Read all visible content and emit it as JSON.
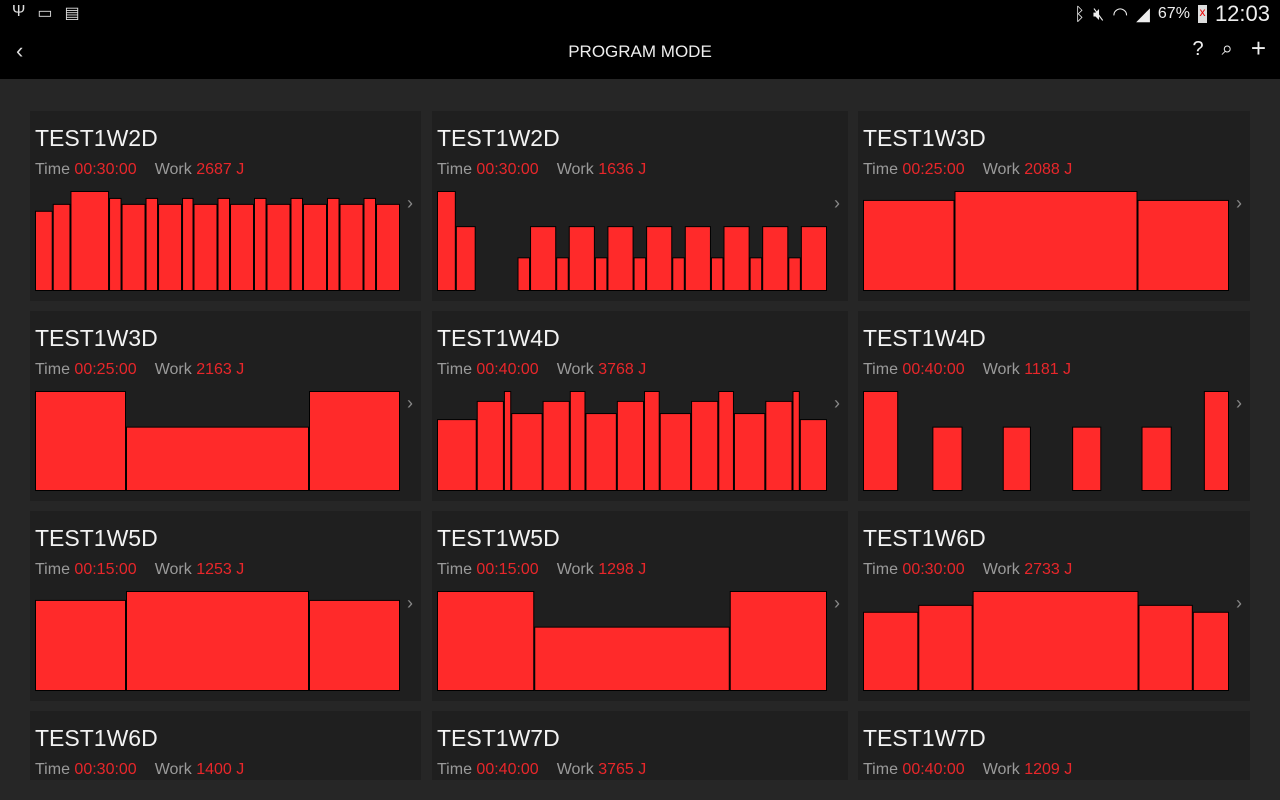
{
  "status_bar": {
    "left_icons": [
      "usb-icon",
      "screen-cast-icon",
      "sim-off-icon"
    ],
    "right_icons": [
      "bluetooth-icon",
      "mute-icon",
      "wifi-icon",
      "signal-icon"
    ],
    "battery": "67%",
    "time": "12:03"
  },
  "app_bar": {
    "title": "PROGRAM MODE",
    "back_icon": "chevron-left-icon",
    "actions": [
      {
        "icon": "help-icon",
        "label": "?"
      },
      {
        "icon": "search-icon"
      },
      {
        "icon": "plus-icon",
        "label": "+"
      }
    ]
  },
  "labels": {
    "time": "Time",
    "work": "Work"
  },
  "colors": {
    "bar": "#ff2a2a",
    "value": "#e8262a"
  },
  "programs": [
    {
      "name": "TEST1W2D",
      "time": "00:30:00",
      "work": "2687 J",
      "segments": [
        [
          17,
          0.8
        ],
        [
          17,
          0.87
        ],
        [
          37,
          1
        ],
        [
          12,
          0.93
        ],
        [
          23,
          0.87
        ],
        [
          12,
          0.93
        ],
        [
          23,
          0.87
        ],
        [
          11,
          0.93
        ],
        [
          23,
          0.87
        ],
        [
          12,
          0.93
        ],
        [
          23,
          0.87
        ],
        [
          12,
          0.93
        ],
        [
          23,
          0.87
        ],
        [
          12,
          0.93
        ],
        [
          23,
          0.87
        ],
        [
          12,
          0.93
        ],
        [
          23,
          0.87
        ],
        [
          12,
          0.93
        ],
        [
          23,
          0.87
        ]
      ]
    },
    {
      "name": "TEST1W2D",
      "time": "00:30:00",
      "work": "1636 J",
      "segments": [
        [
          54,
          1
        ],
        [
          57,
          0.645
        ],
        [
          120,
          0
        ],
        [
          36,
          0.33
        ],
        [
          75,
          0.645
        ],
        [
          36,
          0.33
        ],
        [
          75,
          0.645
        ],
        [
          36,
          0.33
        ],
        [
          75,
          0.645
        ],
        [
          36,
          0.33
        ],
        [
          75,
          0.645
        ],
        [
          36,
          0.33
        ],
        [
          75,
          0.645
        ],
        [
          36,
          0.33
        ],
        [
          75,
          0.645
        ],
        [
          36,
          0.33
        ],
        [
          75,
          0.645
        ],
        [
          36,
          0.33
        ],
        [
          75,
          0.645
        ]
      ]
    },
    {
      "name": "TEST1W3D",
      "time": "00:25:00",
      "work": "2088 J",
      "segments": [
        [
          91,
          0.91
        ],
        [
          182,
          1
        ],
        [
          91,
          0.91
        ]
      ]
    },
    {
      "name": "TEST1W3D",
      "time": "00:25:00",
      "work": "2163 J",
      "segments": [
        [
          91,
          1
        ],
        [
          183,
          0.64
        ],
        [
          91,
          1
        ]
      ]
    },
    {
      "name": "TEST1W4D",
      "time": "00:40:00",
      "work": "3768 J",
      "segments": [
        [
          114,
          0.716
        ],
        [
          78,
          0.9
        ],
        [
          21,
          1
        ],
        [
          90,
          0.777
        ],
        [
          78,
          0.9
        ],
        [
          45,
          1
        ],
        [
          90,
          0.777
        ],
        [
          78,
          0.9
        ],
        [
          45,
          1
        ],
        [
          90,
          0.777
        ],
        [
          78,
          0.9
        ],
        [
          45,
          1
        ],
        [
          90,
          0.777
        ],
        [
          78,
          0.9
        ],
        [
          21,
          1
        ],
        [
          78,
          0.716
        ]
      ]
    },
    {
      "name": "TEST1W4D",
      "time": "00:40:00",
      "work": "1181 J",
      "segments": [
        [
          35,
          1
        ],
        [
          34,
          0
        ],
        [
          30,
          0.64
        ],
        [
          40,
          0
        ],
        [
          28,
          0.64
        ],
        [
          41,
          0
        ],
        [
          29,
          0.64
        ],
        [
          40,
          0
        ],
        [
          30,
          0.64
        ],
        [
          32,
          0
        ],
        [
          25,
          1
        ]
      ]
    },
    {
      "name": "TEST1W5D",
      "time": "00:15:00",
      "work": "1253 J",
      "segments": [
        [
          91,
          0.91
        ],
        [
          183,
          1
        ],
        [
          91,
          0.91
        ]
      ]
    },
    {
      "name": "TEST1W5D",
      "time": "00:15:00",
      "work": "1298 J",
      "segments": [
        [
          97,
          1
        ],
        [
          195,
          0.64
        ],
        [
          97,
          1
        ]
      ]
    },
    {
      "name": "TEST1W6D",
      "time": "00:30:00",
      "work": "2733 J",
      "segments": [
        [
          55,
          0.79
        ],
        [
          54,
          0.86
        ],
        [
          165,
          1
        ],
        [
          54,
          0.86
        ],
        [
          36,
          0.79
        ]
      ]
    },
    {
      "name": "TEST1W6D",
      "time": "00:30:00",
      "work": "1400 J",
      "segments": []
    },
    {
      "name": "TEST1W7D",
      "time": "00:40:00",
      "work": "3765 J",
      "segments": []
    },
    {
      "name": "TEST1W7D",
      "time": "00:40:00",
      "work": "1209 J",
      "segments": []
    }
  ]
}
